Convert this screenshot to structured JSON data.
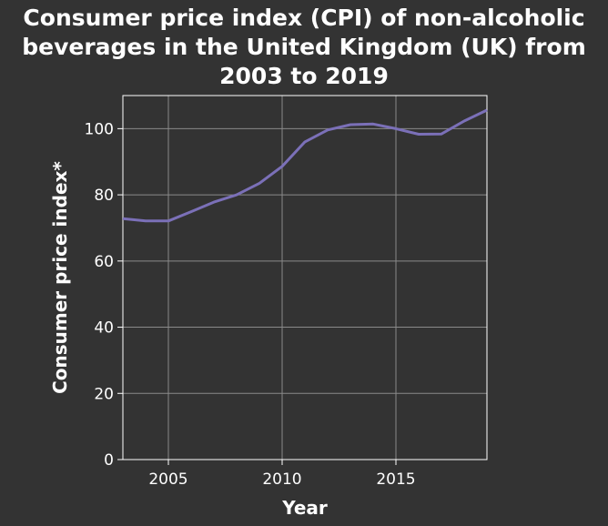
{
  "chart_data": {
    "type": "line",
    "title": "Consumer price index (CPI) of non-alcoholic\nbeverages in the United Kingdom (UK) from\n2003 to 2019",
    "xlabel": "Year",
    "ylabel": "Consumer price index*",
    "xlim": [
      2003,
      2019
    ],
    "ylim": [
      0,
      110
    ],
    "xticks": [
      2005,
      2010,
      2015
    ],
    "yticks": [
      0,
      20,
      40,
      60,
      80,
      100
    ],
    "grid": true,
    "series": [
      {
        "x": [
          2003,
          2004,
          2005,
          2006,
          2007,
          2008,
          2009,
          2010,
          2011,
          2012,
          2013,
          2014,
          2015,
          2016,
          2017,
          2018,
          2019
        ],
        "values": [
          72.8,
          72.1,
          72.1,
          74.9,
          77.8,
          80.0,
          83.5,
          88.6,
          96.0,
          99.6,
          101.2,
          101.4,
          100.0,
          98.3,
          98.4,
          102.3,
          105.6
        ],
        "color": "#7b70b8"
      }
    ],
    "colors": {
      "background": "#333333",
      "grid": "#8a8a8a",
      "line": "#7b70b8",
      "text": "#ffffff"
    }
  }
}
